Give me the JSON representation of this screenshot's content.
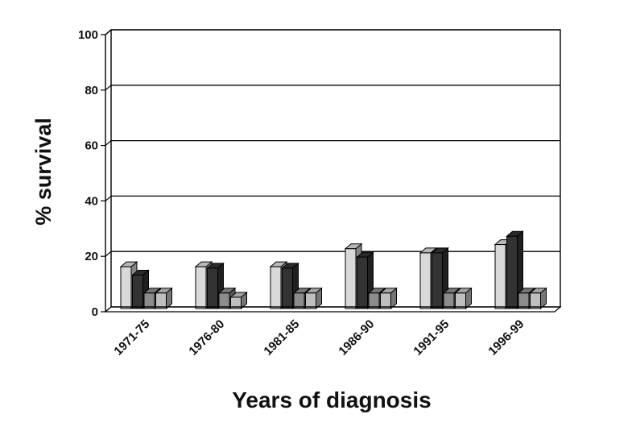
{
  "chart_data": {
    "type": "bar",
    "title": "",
    "xlabel": "Years of diagnosis",
    "ylabel": "% survival",
    "ylim": [
      0,
      100
    ],
    "yticks": [
      0,
      20,
      40,
      60,
      80,
      100
    ],
    "grid": true,
    "categories": [
      "1971-75",
      "1976-80",
      "1981-85",
      "1986-90",
      "1991-95",
      "1996-99"
    ],
    "series": [
      {
        "color": "#d9d9d9",
        "values": [
          14.5,
          14.5,
          14.5,
          21,
          19.5,
          22.5
        ]
      },
      {
        "color": "#333333",
        "values": [
          11.5,
          14,
          14,
          18,
          19.5,
          25.5
        ]
      },
      {
        "color": "#8c8c8c",
        "values": [
          5,
          5,
          5,
          5,
          5,
          5
        ]
      },
      {
        "color": "#bfbfbf",
        "values": [
          5,
          3.5,
          5,
          5,
          5,
          5
        ]
      }
    ]
  }
}
